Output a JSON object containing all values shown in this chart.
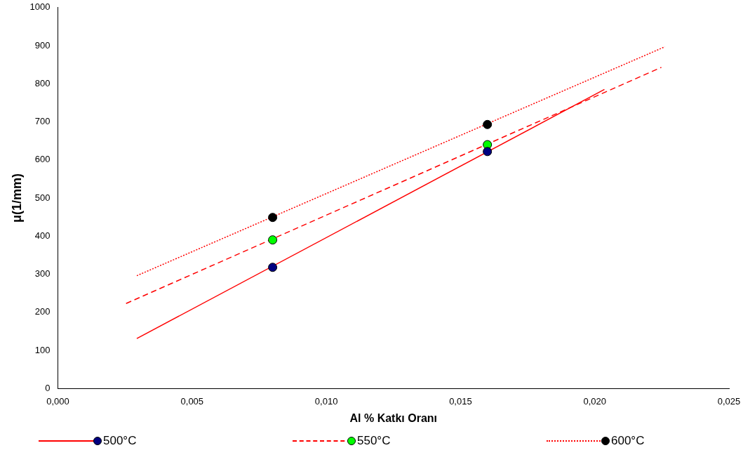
{
  "chart_data": {
    "type": "scatter",
    "xlabel": "Al % Katkı Oranı",
    "ylabel": "μ(1/mm)",
    "xlim": [
      0,
      0.025
    ],
    "xticks": [
      {
        "value": 0,
        "label": "0,000"
      },
      {
        "value": 0.005,
        "label": "0,005"
      },
      {
        "value": 0.01,
        "label": "0,010"
      },
      {
        "value": 0.015,
        "label": "0,015"
      },
      {
        "value": 0.02,
        "label": "0,020"
      },
      {
        "value": 0.025,
        "label": "0,025"
      }
    ],
    "ylim": [
      0,
      1000
    ],
    "yticks": [
      0,
      100,
      200,
      300,
      400,
      500,
      600,
      700,
      800,
      900,
      1000
    ],
    "grid": false,
    "legend": "bottom",
    "series": [
      {
        "name": "500°C",
        "color": "#000080",
        "marker": "circle",
        "x": [
          0.008,
          0.016
        ],
        "values": [
          318,
          622
        ]
      },
      {
        "name": "550°C",
        "color": "#00ff00",
        "marker": "circle",
        "x": [
          0.008,
          0.016
        ],
        "values": [
          390,
          640
        ]
      },
      {
        "name": "600°C",
        "color": "#000000",
        "marker": "circle",
        "x": [
          0.008,
          0.016
        ],
        "values": [
          449,
          693
        ]
      },
      {
        "type": "line",
        "color": "#ff0000",
        "line_style": "solid",
        "marker": "none",
        "x": [
          0.00294,
          0.02036
        ],
        "values": [
          131,
          785
        ]
      },
      {
        "type": "line",
        "color": "#ff0000",
        "line_style": "dashed",
        "marker": "none",
        "x": [
          0.00254,
          0.02248
        ],
        "values": [
          223,
          843
        ]
      },
      {
        "type": "line",
        "color": "#ff0000",
        "line_style": "dotted",
        "marker": "none",
        "x": [
          0.00294,
          0.02261
        ],
        "values": [
          296,
          897
        ]
      }
    ]
  }
}
